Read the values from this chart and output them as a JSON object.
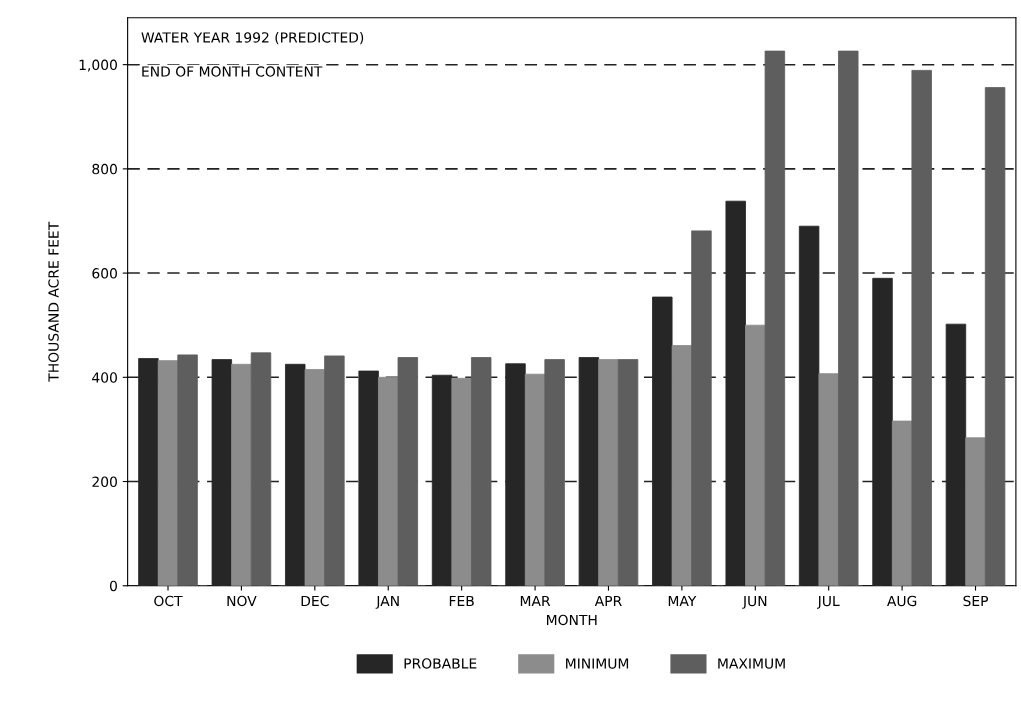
{
  "chart_data": {
    "type": "bar",
    "categories": [
      "OCT",
      "NOV",
      "DEC",
      "JAN",
      "FEB",
      "MAR",
      "APR",
      "MAY",
      "JUN",
      "JUL",
      "AUG",
      "SEP"
    ],
    "series": [
      {
        "name": "PROBABLE",
        "color": "#262626",
        "values": [
          436,
          434,
          425,
          412,
          404,
          426,
          438,
          554,
          738,
          690,
          590,
          502
        ]
      },
      {
        "name": "MINIMUM",
        "color": "#8c8c8c",
        "values": [
          432,
          425,
          415,
          400,
          398,
          406,
          434,
          461,
          500,
          407,
          316,
          284
        ]
      },
      {
        "name": "MAXIMUM",
        "color": "#5e5e5e",
        "values": [
          443,
          447,
          441,
          438,
          438,
          434,
          434,
          681,
          1026,
          1026,
          989,
          956
        ]
      }
    ],
    "xlabel": "MONTH",
    "ylabel": "THOUSAND ACRE FEET",
    "annotations": [
      "WATER YEAR 1992 (PREDICTED)",
      "END OF MONTH CONTENT"
    ],
    "ylim": [
      0,
      1090
    ],
    "yticks": [
      0,
      200,
      400,
      600,
      800,
      {
        "value": 1000,
        "label": "1,000"
      }
    ],
    "grid": "y",
    "legend": "bottom"
  }
}
